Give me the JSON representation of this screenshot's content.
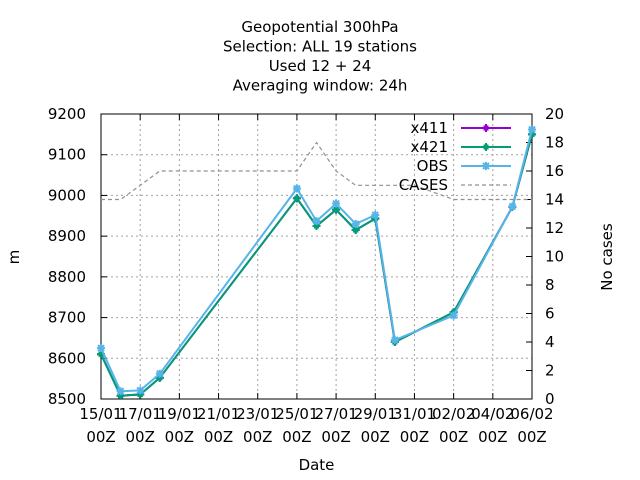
{
  "chart_data": {
    "type": "line",
    "title_lines": [
      "Geopotential 300hPa",
      "Selection: ALL      19 stations",
      "Used  12 + 24",
      "Averaging window: 24h"
    ],
    "xlabel": "Date",
    "ylabel": "m",
    "y2label": "No cases",
    "ylim": [
      8500,
      9200
    ],
    "y2lim": [
      0,
      20
    ],
    "xlim": [
      0,
      22
    ],
    "grid": true,
    "legend_position": "top-right",
    "x_ticks": [
      {
        "x": 0,
        "top": "15/01",
        "bottom": "00Z"
      },
      {
        "x": 2,
        "top": "17/01",
        "bottom": "00Z"
      },
      {
        "x": 4,
        "top": "19/01",
        "bottom": "00Z"
      },
      {
        "x": 6,
        "top": "21/01",
        "bottom": "00Z"
      },
      {
        "x": 8,
        "top": "23/01",
        "bottom": "00Z"
      },
      {
        "x": 10,
        "top": "25/01",
        "bottom": "00Z"
      },
      {
        "x": 12,
        "top": "27/01",
        "bottom": "00Z"
      },
      {
        "x": 14,
        "top": "29/01",
        "bottom": "00Z"
      },
      {
        "x": 16,
        "top": "31/01",
        "bottom": "00Z"
      },
      {
        "x": 18,
        "top": "02/02",
        "bottom": "00Z"
      },
      {
        "x": 20,
        "top": "04/02",
        "bottom": "00Z"
      },
      {
        "x": 22,
        "top": "06/02",
        "bottom": "00Z"
      }
    ],
    "y_ticks": [
      8500,
      8600,
      8700,
      8800,
      8900,
      9000,
      9100,
      9200
    ],
    "y2_ticks": [
      0,
      2,
      4,
      6,
      8,
      10,
      12,
      14,
      16,
      18,
      20
    ],
    "series": [
      {
        "name": "x411",
        "color": "#9400d3",
        "axis": "y1",
        "marker": "plus",
        "points": [
          [
            0,
            8610
          ],
          [
            1,
            8508
          ],
          [
            2,
            8511
          ],
          [
            3,
            8552
          ],
          [
            10,
            8993
          ],
          [
            11,
            8925
          ],
          [
            12,
            8965
          ],
          [
            13,
            8915
          ],
          [
            14,
            8943
          ],
          [
            15,
            8640
          ],
          [
            18,
            8713
          ],
          [
            21,
            8972
          ],
          [
            22,
            9150
          ]
        ]
      },
      {
        "name": "x421",
        "color": "#009e73",
        "axis": "y1",
        "marker": "plus",
        "points": [
          [
            0,
            8610
          ],
          [
            1,
            8508
          ],
          [
            2,
            8511
          ],
          [
            3,
            8552
          ],
          [
            10,
            8993
          ],
          [
            11,
            8925
          ],
          [
            12,
            8965
          ],
          [
            13,
            8915
          ],
          [
            14,
            8943
          ],
          [
            15,
            8640
          ],
          [
            18,
            8713
          ],
          [
            21,
            8972
          ],
          [
            22,
            9150
          ]
        ]
      },
      {
        "name": "OBS",
        "color": "#56b4e9",
        "axis": "y1",
        "marker": "star",
        "points": [
          [
            0,
            8625
          ],
          [
            1,
            8519
          ],
          [
            2,
            8521
          ],
          [
            3,
            8562
          ],
          [
            10,
            9017
          ],
          [
            11,
            8937
          ],
          [
            12,
            8980
          ],
          [
            13,
            8930
          ],
          [
            14,
            8952
          ],
          [
            15,
            8645
          ],
          [
            18,
            8705
          ],
          [
            21,
            8973
          ],
          [
            22,
            9162
          ]
        ]
      },
      {
        "name": "CASES",
        "color": "#909090",
        "axis": "y2",
        "dashed": true,
        "points": [
          [
            0,
            14
          ],
          [
            1,
            14
          ],
          [
            2,
            15
          ],
          [
            3,
            16
          ],
          [
            4,
            16
          ],
          [
            5,
            16
          ],
          [
            6,
            16
          ],
          [
            7,
            16
          ],
          [
            8,
            16
          ],
          [
            9,
            16
          ],
          [
            10,
            16
          ],
          [
            11,
            18
          ],
          [
            12,
            16
          ],
          [
            13,
            15
          ],
          [
            14,
            15
          ],
          [
            15,
            15
          ],
          [
            16,
            15
          ],
          [
            17,
            14.5
          ],
          [
            18,
            14
          ],
          [
            19,
            14
          ],
          [
            20,
            14
          ],
          [
            21,
            14
          ],
          [
            22,
            14
          ]
        ]
      }
    ]
  }
}
